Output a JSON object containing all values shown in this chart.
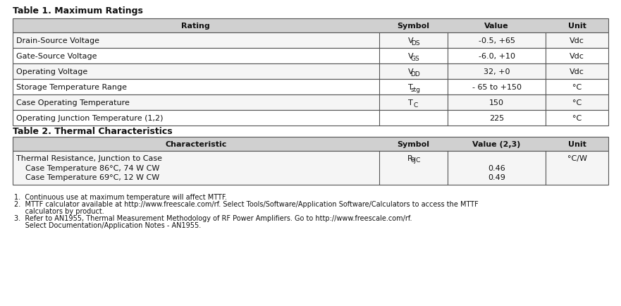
{
  "title1": "Table 1. Maximum Ratings",
  "title2": "Table 2. Thermal Characteristics",
  "table1_headers": [
    "Rating",
    "Symbol",
    "Value",
    "Unit"
  ],
  "table1_rows": [
    [
      "Drain-Source Voltage",
      "V DS",
      "-0.5, +65",
      "Vdc"
    ],
    [
      "Gate-Source Voltage",
      "V GS",
      "-6.0, +10",
      "Vdc"
    ],
    [
      "Operating Voltage",
      "V DD",
      "32, +0",
      "Vdc"
    ],
    [
      "Storage Temperature Range",
      "T stg",
      "- 65 to +150",
      "°C"
    ],
    [
      "Case Operating Temperature",
      "Tc",
      "150",
      "°C"
    ],
    [
      "Operating Junction Temperature (1,2)",
      "",
      "225",
      "°C"
    ]
  ],
  "table1_symbols_main": [
    "V",
    "V",
    "V",
    "T",
    "T",
    ""
  ],
  "table1_symbols_sub": [
    "DS",
    "GS",
    "DD",
    "stg",
    "C",
    ""
  ],
  "table2_headers": [
    "Characteristic",
    "Symbol",
    "Value (2,3)",
    "Unit"
  ],
  "table2_rows": [
    [
      "Thermal Resistance, Junction to Case\n    Case Temperature 86°C, 74 W CW\n    Case Temperature 69°C, 12 W CW",
      "R θJC",
      "\n0.46\n0.49",
      "°C/W"
    ]
  ],
  "footnotes": [
    "1.  Continuous use at maximum temperature will affect MTTF.",
    "2.  MTTF calculator available at http://www.freescale.com/rf. Select Tools/Software/Application Software/Calculators to access the MTTF\n     calculators by product.",
    "3.  Refer to AN1955, Thermal Measurement Methodology of RF Power Amplifiers. Go to http://www.freescale.com/rf.\n     Select Documentation/Application Notes - AN1955."
  ],
  "underline_urls": [
    "http://www.freescale.com/rf",
    "http://www.freescale.com/rf."
  ],
  "header_bg": "#d0d0d0",
  "row_bg_light": "#f5f5f5",
  "row_bg_white": "#ffffff",
  "border_color": "#555555",
  "text_color": "#111111",
  "title_fontsize": 9,
  "header_fontsize": 8,
  "cell_fontsize": 8,
  "footnote_fontsize": 7,
  "bg_color": "#ffffff"
}
